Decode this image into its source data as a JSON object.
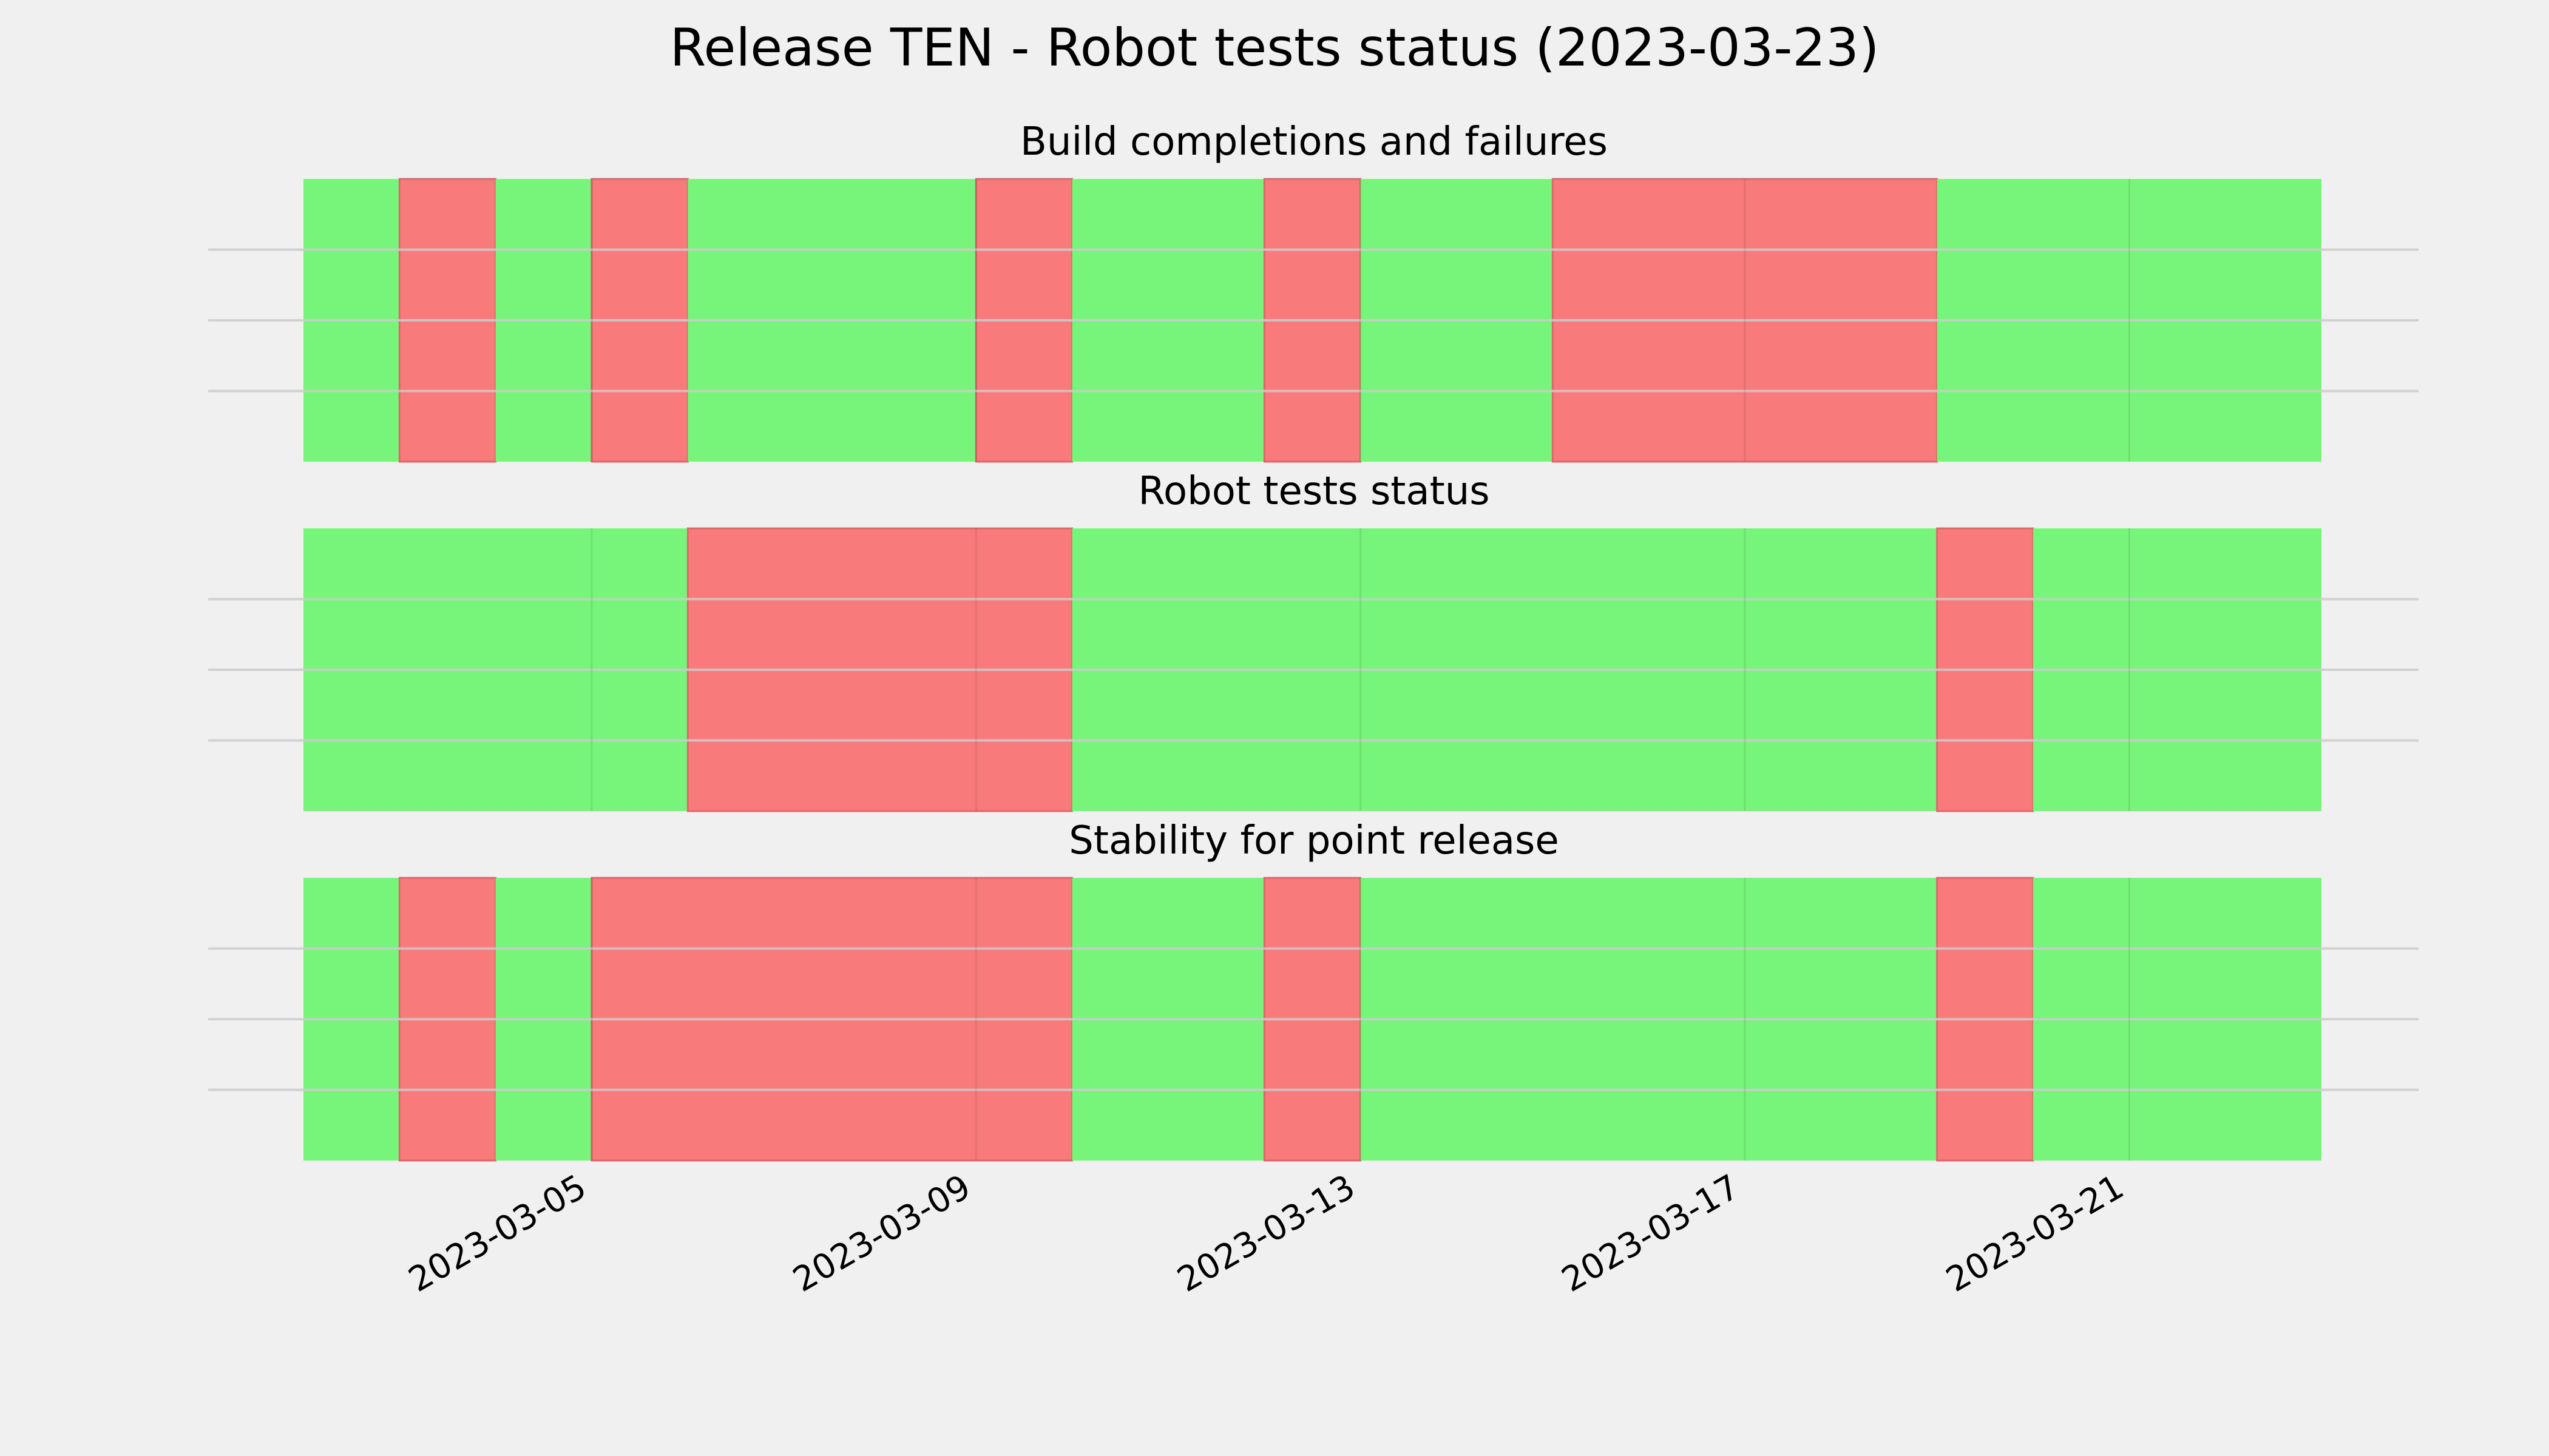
{
  "chart_data": {
    "type": "timeline-status",
    "title": "Release TEN - Robot tests status (2023-03-23)",
    "x_ticks": [
      "2023-03-05",
      "2023-03-09",
      "2023-03-13",
      "2023-03-17",
      "2023-03-21"
    ],
    "xlim": [
      "2023-03-02",
      "2023-03-24"
    ],
    "colors": {
      "pass": "#77f57a",
      "fail": "#f97a7a",
      "background": "#f0f0f0",
      "grid": "#cccccc"
    },
    "panels": [
      {
        "title": "Build completions and failures",
        "segments": [
          {
            "start": "2023-03-02",
            "end": "2023-03-03",
            "status": "pass"
          },
          {
            "start": "2023-03-03",
            "end": "2023-03-04",
            "status": "fail"
          },
          {
            "start": "2023-03-04",
            "end": "2023-03-05",
            "status": "pass"
          },
          {
            "start": "2023-03-05",
            "end": "2023-03-06",
            "status": "fail"
          },
          {
            "start": "2023-03-06",
            "end": "2023-03-09",
            "status": "pass"
          },
          {
            "start": "2023-03-09",
            "end": "2023-03-10",
            "status": "fail"
          },
          {
            "start": "2023-03-10",
            "end": "2023-03-12",
            "status": "pass"
          },
          {
            "start": "2023-03-12",
            "end": "2023-03-13",
            "status": "fail"
          },
          {
            "start": "2023-03-13",
            "end": "2023-03-15",
            "status": "pass"
          },
          {
            "start": "2023-03-15",
            "end": "2023-03-19",
            "status": "fail"
          },
          {
            "start": "2023-03-19",
            "end": "2023-03-23",
            "status": "pass"
          }
        ]
      },
      {
        "title": "Robot tests status",
        "segments": [
          {
            "start": "2023-03-02",
            "end": "2023-03-06",
            "status": "pass"
          },
          {
            "start": "2023-03-06",
            "end": "2023-03-10",
            "status": "fail"
          },
          {
            "start": "2023-03-10",
            "end": "2023-03-19",
            "status": "pass"
          },
          {
            "start": "2023-03-19",
            "end": "2023-03-20",
            "status": "fail"
          },
          {
            "start": "2023-03-20",
            "end": "2023-03-23",
            "status": "pass"
          }
        ]
      },
      {
        "title": "Stability for point release",
        "segments": [
          {
            "start": "2023-03-02",
            "end": "2023-03-03",
            "status": "pass"
          },
          {
            "start": "2023-03-03",
            "end": "2023-03-04",
            "status": "fail"
          },
          {
            "start": "2023-03-04",
            "end": "2023-03-05",
            "status": "pass"
          },
          {
            "start": "2023-03-05",
            "end": "2023-03-10",
            "status": "fail"
          },
          {
            "start": "2023-03-10",
            "end": "2023-03-12",
            "status": "pass"
          },
          {
            "start": "2023-03-12",
            "end": "2023-03-13",
            "status": "fail"
          },
          {
            "start": "2023-03-13",
            "end": "2023-03-19",
            "status": "pass"
          },
          {
            "start": "2023-03-19",
            "end": "2023-03-20",
            "status": "fail"
          },
          {
            "start": "2023-03-20",
            "end": "2023-03-23",
            "status": "pass"
          }
        ]
      }
    ]
  }
}
